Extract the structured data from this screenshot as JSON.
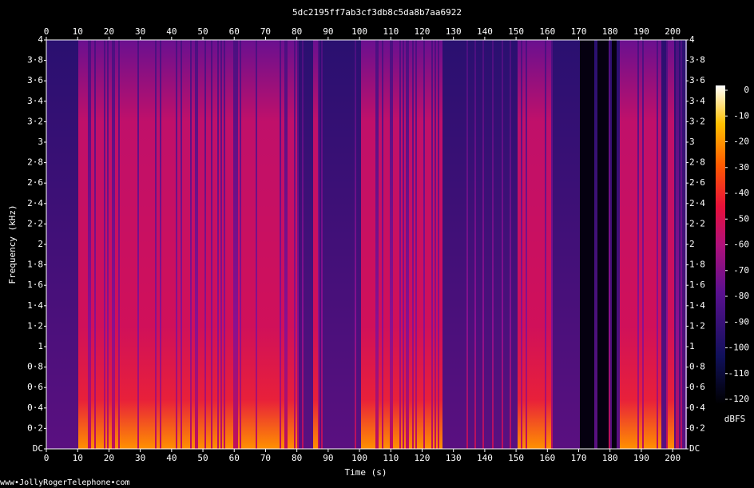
{
  "chart_data": {
    "type": "spectrogram",
    "title": "5dc2195ff7ab3cf3db8c5da8b7aa6922",
    "x_label": "Time (s)",
    "y_label": "Frequency (kHz)",
    "xlim": [
      0,
      204.3
    ],
    "xticks": [
      0,
      10,
      20,
      30,
      40,
      50,
      60,
      70,
      80,
      90,
      100,
      110,
      120,
      130,
      140,
      150,
      160,
      170,
      180,
      190,
      200
    ],
    "ylim": [
      0,
      4
    ],
    "yticks": [
      {
        "value": 0,
        "label": "DC"
      },
      {
        "value": 0.2,
        "label": "0·2"
      },
      {
        "value": 0.4,
        "label": "0·4"
      },
      {
        "value": 0.6,
        "label": "0·6"
      },
      {
        "value": 0.8,
        "label": "0·8"
      },
      1,
      {
        "value": 1.2,
        "label": "1·2"
      },
      {
        "value": 1.4,
        "label": "1·4"
      },
      {
        "value": 1.6,
        "label": "1·6"
      },
      {
        "value": 1.8,
        "label": "1·8"
      },
      2,
      {
        "value": 2.2,
        "label": "2·2"
      },
      {
        "value": 2.4,
        "label": "2·4"
      },
      {
        "value": 2.6,
        "label": "2·6"
      },
      {
        "value": 2.8,
        "label": "2·8"
      },
      3,
      {
        "value": 3.2,
        "label": "3·2"
      },
      {
        "value": 3.4,
        "label": "3·4"
      },
      {
        "value": 3.6,
        "label": "3·6"
      },
      {
        "value": 3.8,
        "label": "3·8"
      },
      4
    ],
    "colorbar_label": "dBFS",
    "zlim": [
      -120,
      0
    ],
    "zticks": [
      0,
      -10,
      -20,
      -30,
      -40,
      -50,
      -60,
      -70,
      -80,
      -90,
      -100,
      -110,
      -120
    ],
    "footer": "www•JollyRogerTelephone•com"
  }
}
